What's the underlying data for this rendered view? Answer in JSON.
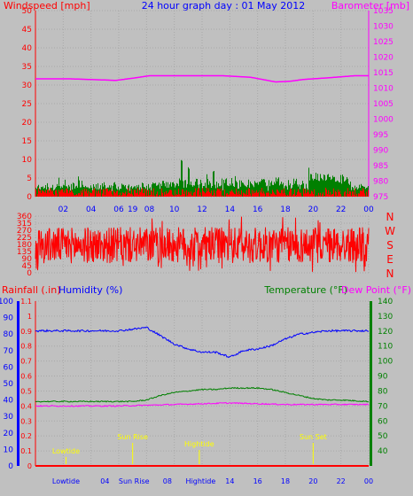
{
  "colors": {
    "background": "#c0c0c0",
    "wind": "#ff0000",
    "gust": "#008000",
    "barometer": "#ff00ff",
    "direction": "#ff0000",
    "rain": "#ff0000",
    "humidity": "#0000ff",
    "temperature": "#008000",
    "dewpoint": "#ff00ff",
    "title": "#0000ff",
    "tide": "#ffff00"
  },
  "header": {
    "wind_label": "Windspeed [mph]",
    "title": "24 hour graph day : 01 May 2012",
    "baro_label": "Barometer [mb]"
  },
  "panel3_labels": {
    "rain": "Rainfall (.in)",
    "humidity": "Humidity (%)",
    "temperature": "Temperature (°F)",
    "dewpoint": "Dew Point (°F)"
  },
  "chart_data": [
    {
      "type": "line",
      "panel": "wind-and-barometer",
      "title": "24 hour graph day : 01 May 2012",
      "x_tick_labels": [
        "02",
        "04",
        "06",
        "19",
        "08",
        "10",
        "12",
        "14",
        "16",
        "18",
        "20",
        "22",
        "00"
      ],
      "y_left": {
        "label": "Windspeed [mph]",
        "range": [
          0,
          50
        ],
        "ticks": [
          0,
          5,
          10,
          15,
          20,
          25,
          30,
          35,
          40,
          45,
          50
        ]
      },
      "y_right": {
        "label": "Barometer [mb]",
        "range": [
          975,
          1035
        ],
        "ticks": [
          975,
          980,
          985,
          990,
          995,
          1000,
          1005,
          1010,
          1015,
          1020,
          1025,
          1030,
          1035
        ]
      },
      "grid": true,
      "series": [
        {
          "name": "Barometer [mb]",
          "axis": "right",
          "hours": [
            0,
            2.5,
            5.8,
            7.0,
            8.2,
            10.0,
            13.5,
            15.5,
            17.3,
            18.3,
            19.3,
            21.0,
            23.0,
            24.0
          ],
          "values": [
            1013,
            1013,
            1012.5,
            1013.2,
            1014,
            1014,
            1014,
            1013.5,
            1012,
            1012.2,
            1012.8,
            1013.3,
            1014,
            1014
          ]
        },
        {
          "name": "Gust [mph]",
          "axis": "left",
          "peaks": [
            {
              "hour": 10.5,
              "value": 10
            },
            {
              "hour": 11.0,
              "value": 8
            },
            {
              "hour": 12.8,
              "value": 7
            },
            {
              "hour": 13.7,
              "value": 5
            },
            {
              "hour": 20.8,
              "value": 6
            },
            {
              "hour": 21.3,
              "value": 5
            }
          ]
        },
        {
          "name": "Windspeed [mph]",
          "axis": "left",
          "typical_range": [
            0,
            3
          ]
        }
      ]
    },
    {
      "type": "line",
      "panel": "wind-direction",
      "y_left": {
        "range": [
          0,
          360
        ],
        "ticks": [
          0,
          45,
          90,
          135,
          180,
          225,
          270,
          315,
          360
        ]
      },
      "y_right_compass": [
        "N",
        "W",
        "S",
        "E",
        "N"
      ],
      "series": [
        {
          "name": "Wind direction",
          "typical_range": [
            60,
            300
          ],
          "extremes": [
            0,
            360
          ]
        }
      ]
    },
    {
      "type": "line",
      "panel": "rain-humidity-temperature",
      "x_tick_labels": [
        "Lowtide",
        "04",
        "Sun Rise",
        "08",
        "Hightide",
        "12",
        "14",
        "16",
        "18",
        "20",
        "22",
        "00"
      ],
      "y_rain": {
        "label": "Rainfall (.in)",
        "range": [
          0,
          1.1
        ],
        "ticks": [
          0,
          0.1,
          0.2,
          0.3,
          0.4,
          0.5,
          0.6,
          0.7,
          0.8,
          0.9,
          1,
          1.1
        ]
      },
      "y_humidity": {
        "label": "Humidity (%)",
        "range": [
          0,
          100
        ],
        "ticks": [
          0,
          10,
          20,
          30,
          40,
          50,
          60,
          70,
          80,
          90,
          100
        ]
      },
      "y_right": {
        "label": "Temperature (°F)",
        "range": [
          30,
          140
        ],
        "ticks": [
          40,
          50,
          60,
          70,
          80,
          90,
          100,
          110,
          120,
          130,
          140
        ]
      },
      "annotations": [
        {
          "label": "Lowtide",
          "hour": 2.2
        },
        {
          "label": "Sun Rise",
          "hour": 7.0
        },
        {
          "label": "Hightide",
          "hour": 11.8
        },
        {
          "label": "Sun Set",
          "hour": 20.0
        }
      ],
      "series": [
        {
          "name": "Rainfall (.in)",
          "hours": [
            0,
            24
          ],
          "values": [
            0,
            0
          ]
        },
        {
          "name": "Humidity (%)",
          "hours": [
            0,
            6,
            7,
            8,
            9,
            10,
            11,
            12,
            13,
            14,
            14.5,
            15,
            16,
            17,
            18,
            19,
            20,
            21,
            22,
            23,
            24
          ],
          "values": [
            82,
            82,
            83,
            84,
            79,
            74,
            71,
            69,
            69,
            66,
            68,
            70,
            71,
            73,
            77,
            80,
            81,
            82,
            82,
            82,
            82
          ]
        },
        {
          "name": "Temperature (°F)",
          "hours": [
            0,
            6,
            7,
            8,
            9,
            10,
            11,
            12,
            13,
            14,
            15,
            16,
            17,
            18,
            19,
            20,
            21,
            22,
            24
          ],
          "values": [
            73,
            73,
            73,
            74,
            77,
            79,
            80,
            81,
            81,
            82,
            82,
            82,
            81,
            79,
            77,
            75,
            74,
            74,
            73
          ]
        },
        {
          "name": "Dew Point (°F)",
          "hours": [
            0,
            6,
            8,
            10,
            12,
            14,
            16,
            18,
            20,
            22,
            24
          ],
          "values": [
            70,
            70,
            70.5,
            71,
            71.5,
            72,
            71.5,
            71,
            71,
            71,
            71
          ]
        }
      ]
    }
  ]
}
